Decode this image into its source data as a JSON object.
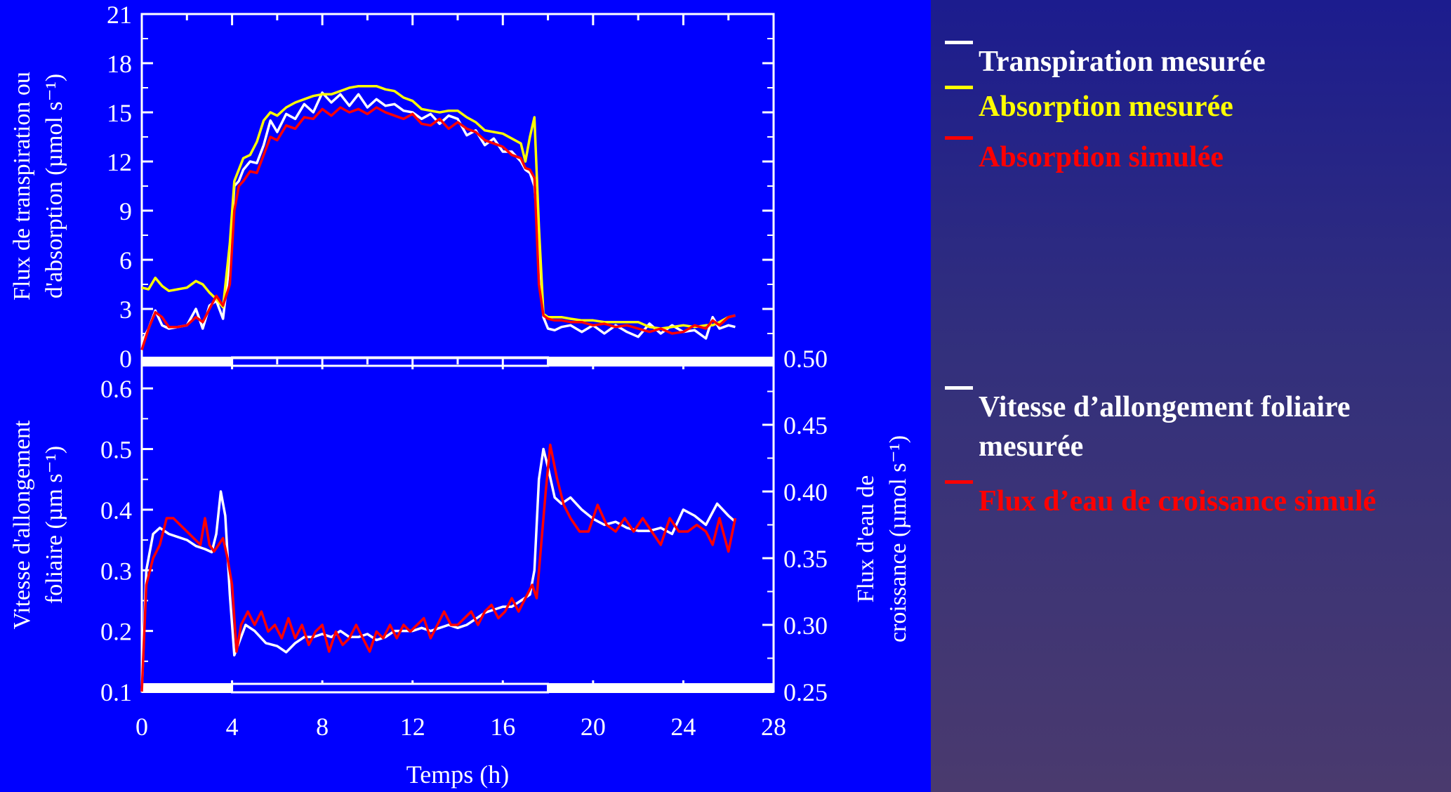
{
  "chart_data": [
    {
      "type": "line",
      "ylabel": [
        "Flux de transpiration ou",
        "d'absorption (µmol s⁻¹)"
      ],
      "xlim": [
        0,
        28
      ],
      "ylim": [
        0,
        21
      ],
      "yticks": [
        "0",
        "3",
        "6",
        "9",
        "12",
        "15",
        "18",
        "21"
      ],
      "series": [
        {
          "name": "Transpiration mesurée",
          "color": "#ffffff",
          "x": [
            0,
            0.3,
            0.6,
            0.9,
            1.2,
            1.6,
            2.0,
            2.4,
            2.7,
            3.0,
            3.3,
            3.6,
            3.9,
            4.1,
            4.3,
            4.5,
            4.8,
            5.1,
            5.4,
            5.7,
            6.0,
            6.4,
            6.8,
            7.2,
            7.6,
            8.0,
            8.4,
            8.8,
            9.2,
            9.6,
            10.0,
            10.4,
            10.8,
            11.2,
            11.6,
            12.0,
            12.4,
            12.8,
            13.2,
            13.6,
            14.0,
            14.4,
            14.8,
            15.2,
            15.6,
            16.0,
            16.4,
            16.8,
            17.0,
            17.2,
            17.4,
            17.6,
            17.8,
            18.0,
            18.3,
            18.6,
            19.0,
            19.5,
            20.0,
            20.5,
            21.0,
            21.5,
            22.0,
            22.5,
            23.0,
            23.5,
            24.0,
            24.5,
            25.0,
            25.3,
            25.6,
            26.0,
            26.3
          ],
          "values": [
            1.0,
            1.8,
            2.9,
            2.0,
            1.8,
            1.9,
            2.0,
            3.0,
            1.8,
            3.2,
            3.5,
            2.4,
            6.0,
            10.5,
            10.8,
            11.5,
            12.0,
            11.9,
            13.0,
            14.5,
            13.8,
            14.9,
            14.6,
            15.5,
            15.0,
            16.2,
            15.6,
            16.1,
            15.4,
            16.1,
            15.3,
            15.8,
            15.4,
            15.5,
            15.1,
            15.0,
            14.6,
            14.9,
            14.3,
            14.8,
            14.6,
            13.6,
            13.9,
            13.0,
            13.4,
            12.6,
            12.6,
            12.0,
            11.5,
            11.3,
            10.5,
            7.0,
            2.5,
            1.8,
            1.7,
            1.9,
            2.0,
            1.6,
            2.0,
            1.5,
            2.0,
            1.6,
            1.3,
            2.1,
            1.5,
            2.0,
            1.6,
            1.7,
            1.2,
            2.5,
            1.8,
            2.0,
            1.9
          ]
        },
        {
          "name": "Absorption mesurée",
          "color": "#ffff00",
          "x": [
            0,
            0.3,
            0.6,
            0.9,
            1.2,
            1.6,
            2.0,
            2.4,
            2.7,
            3.0,
            3.3,
            3.6,
            3.9,
            4.1,
            4.3,
            4.5,
            4.8,
            5.1,
            5.4,
            5.7,
            6.0,
            6.4,
            6.8,
            7.2,
            7.6,
            8.0,
            8.4,
            8.8,
            9.2,
            9.6,
            10.0,
            10.4,
            10.8,
            11.2,
            11.6,
            12.0,
            12.4,
            12.8,
            13.2,
            13.6,
            14.0,
            14.4,
            14.8,
            15.2,
            15.6,
            16.0,
            16.4,
            16.8,
            17.0,
            17.2,
            17.4,
            17.6,
            17.8,
            18.0,
            18.3,
            18.6,
            19.0,
            19.5,
            20.0,
            20.5,
            21.0,
            21.5,
            22.0,
            22.5,
            23.0,
            23.5,
            24.0,
            24.5,
            25.0,
            25.3,
            25.6,
            26.0,
            26.3
          ],
          "values": [
            4.3,
            4.2,
            4.9,
            4.4,
            4.1,
            4.2,
            4.3,
            4.7,
            4.5,
            4.0,
            3.6,
            3.1,
            7.0,
            10.8,
            11.5,
            12.2,
            12.4,
            13.2,
            14.5,
            15.0,
            14.8,
            15.3,
            15.6,
            15.8,
            16.0,
            16.1,
            16.1,
            16.3,
            16.5,
            16.6,
            16.6,
            16.6,
            16.4,
            16.3,
            15.9,
            15.7,
            15.2,
            15.1,
            15.0,
            15.1,
            15.1,
            14.7,
            14.4,
            13.9,
            13.8,
            13.7,
            13.4,
            13.1,
            12.0,
            13.5,
            14.7,
            8.0,
            2.7,
            2.5,
            2.5,
            2.5,
            2.4,
            2.3,
            2.3,
            2.2,
            2.2,
            2.2,
            2.2,
            1.9,
            1.8,
            1.9,
            2.0,
            1.9,
            2.0,
            2.0,
            2.2,
            2.5,
            2.6
          ]
        },
        {
          "name": "Absorption simulée",
          "color": "#ff0000",
          "x": [
            0,
            0.3,
            0.6,
            0.9,
            1.2,
            1.6,
            2.0,
            2.4,
            2.7,
            3.0,
            3.3,
            3.6,
            3.9,
            4.1,
            4.3,
            4.5,
            4.8,
            5.1,
            5.4,
            5.7,
            6.0,
            6.4,
            6.8,
            7.2,
            7.6,
            8.0,
            8.4,
            8.8,
            9.2,
            9.6,
            10.0,
            10.4,
            10.8,
            11.2,
            11.6,
            12.0,
            12.4,
            12.8,
            13.2,
            13.6,
            14.0,
            14.4,
            14.8,
            15.2,
            15.6,
            16.0,
            16.4,
            16.8,
            17.0,
            17.2,
            17.4,
            17.6,
            17.8,
            18.0,
            18.3,
            18.6,
            19.0,
            19.5,
            20.0,
            20.5,
            21.0,
            21.5,
            22.0,
            22.5,
            23.0,
            23.5,
            24.0,
            24.5,
            25.0,
            25.3,
            25.6,
            26.0,
            26.3
          ],
          "values": [
            0.5,
            1.8,
            2.8,
            2.5,
            1.9,
            1.9,
            2.0,
            2.5,
            2.2,
            3.0,
            3.8,
            3.2,
            4.5,
            9.0,
            10.5,
            10.8,
            11.4,
            11.3,
            12.4,
            13.5,
            13.3,
            14.2,
            14.0,
            14.7,
            14.6,
            15.2,
            14.8,
            15.3,
            15.0,
            15.2,
            14.9,
            15.3,
            15.0,
            14.8,
            14.6,
            14.9,
            14.3,
            14.2,
            14.6,
            14.0,
            14.4,
            14.0,
            13.8,
            13.3,
            13.1,
            12.9,
            12.4,
            12.2,
            11.6,
            11.5,
            11.0,
            4.5,
            2.6,
            2.4,
            2.3,
            2.3,
            2.2,
            2.2,
            2.0,
            2.1,
            1.9,
            2.0,
            1.8,
            1.6,
            1.8,
            1.5,
            1.6,
            2.0,
            1.8,
            2.3,
            2.0,
            2.5,
            2.6
          ]
        }
      ]
    },
    {
      "type": "line",
      "xlabel": "Temps (h)",
      "ylabel": [
        "Vitesse d'allongement",
        "foliaire (µm s⁻¹)"
      ],
      "y2label": [
        "Flux d'eau de",
        "croissance (µmol s⁻¹)"
      ],
      "xlim": [
        0,
        28
      ],
      "ylim": [
        0.1,
        0.65
      ],
      "y2lim": [
        0.25,
        0.5
      ],
      "xticks": [
        "0",
        "4",
        "8",
        "12",
        "16",
        "20",
        "24",
        "28"
      ],
      "yticks": [
        "0.1",
        "0.2",
        "0.3",
        "0.4",
        "0.5",
        "0.6"
      ],
      "y2ticks": [
        "0.25",
        "0.30",
        "0.35",
        "0.40",
        "0.45",
        "0.50"
      ],
      "series": [
        {
          "name": "Vitesse d’allongement foliaire mesurée",
          "color": "#ffffff",
          "axis": "left",
          "x": [
            0,
            0.2,
            0.5,
            0.8,
            1.2,
            1.6,
            2.0,
            2.4,
            2.8,
            3.1,
            3.3,
            3.5,
            3.7,
            3.9,
            4.1,
            4.3,
            4.6,
            5.0,
            5.5,
            6.0,
            6.4,
            6.8,
            7.2,
            7.6,
            8.0,
            8.4,
            8.8,
            9.2,
            9.6,
            10.0,
            10.4,
            10.8,
            11.2,
            11.6,
            12.0,
            12.4,
            12.8,
            13.2,
            13.6,
            14.0,
            14.4,
            14.8,
            15.2,
            15.6,
            16.0,
            16.4,
            16.8,
            17.2,
            17.4,
            17.6,
            17.8,
            18.0,
            18.3,
            18.6,
            19.0,
            19.5,
            20.0,
            20.5,
            21.0,
            21.5,
            22.0,
            22.5,
            23.0,
            23.5,
            24.0,
            24.5,
            25.0,
            25.5,
            26.0,
            26.3
          ],
          "values": [
            0.1,
            0.3,
            0.36,
            0.37,
            0.36,
            0.355,
            0.35,
            0.34,
            0.335,
            0.33,
            0.36,
            0.43,
            0.39,
            0.26,
            0.16,
            0.18,
            0.21,
            0.2,
            0.18,
            0.175,
            0.165,
            0.18,
            0.19,
            0.19,
            0.195,
            0.19,
            0.2,
            0.19,
            0.19,
            0.195,
            0.185,
            0.19,
            0.2,
            0.2,
            0.2,
            0.205,
            0.2,
            0.205,
            0.21,
            0.205,
            0.21,
            0.22,
            0.23,
            0.235,
            0.24,
            0.24,
            0.25,
            0.26,
            0.3,
            0.45,
            0.5,
            0.47,
            0.42,
            0.41,
            0.42,
            0.4,
            0.385,
            0.375,
            0.38,
            0.37,
            0.365,
            0.365,
            0.37,
            0.36,
            0.4,
            0.39,
            0.375,
            0.41,
            0.39,
            0.38
          ]
        },
        {
          "name": "Flux d’eau  de croissance simulé",
          "color": "#ff0000",
          "axis": "right",
          "x": [
            0,
            0.2,
            0.5,
            0.8,
            1.1,
            1.4,
            1.7,
            2.0,
            2.3,
            2.6,
            2.8,
            3.0,
            3.2,
            3.4,
            3.6,
            3.8,
            4.0,
            4.2,
            4.4,
            4.7,
            5.0,
            5.3,
            5.6,
            5.9,
            6.2,
            6.5,
            6.8,
            7.1,
            7.4,
            7.7,
            8.0,
            8.3,
            8.6,
            8.9,
            9.2,
            9.5,
            9.8,
            10.1,
            10.4,
            10.7,
            11.0,
            11.3,
            11.6,
            11.9,
            12.2,
            12.5,
            12.8,
            13.1,
            13.4,
            13.7,
            14.0,
            14.3,
            14.6,
            14.9,
            15.2,
            15.5,
            15.8,
            16.1,
            16.4,
            16.7,
            17.0,
            17.3,
            17.5,
            17.7,
            17.9,
            18.1,
            18.4,
            18.7,
            19.0,
            19.4,
            19.8,
            20.2,
            20.6,
            21.0,
            21.4,
            21.8,
            22.2,
            22.6,
            23.0,
            23.4,
            23.8,
            24.2,
            24.6,
            25.0,
            25.3,
            25.6,
            26.0,
            26.3
          ],
          "values": [
            0.25,
            0.33,
            0.35,
            0.36,
            0.38,
            0.38,
            0.375,
            0.37,
            0.365,
            0.36,
            0.38,
            0.36,
            0.355,
            0.36,
            0.365,
            0.35,
            0.33,
            0.28,
            0.3,
            0.31,
            0.3,
            0.31,
            0.295,
            0.3,
            0.29,
            0.305,
            0.29,
            0.3,
            0.285,
            0.295,
            0.3,
            0.28,
            0.295,
            0.285,
            0.29,
            0.3,
            0.29,
            0.28,
            0.295,
            0.29,
            0.3,
            0.29,
            0.3,
            0.295,
            0.3,
            0.305,
            0.29,
            0.3,
            0.31,
            0.3,
            0.3,
            0.305,
            0.31,
            0.3,
            0.31,
            0.315,
            0.305,
            0.31,
            0.32,
            0.31,
            0.32,
            0.33,
            0.32,
            0.36,
            0.4,
            0.435,
            0.41,
            0.39,
            0.38,
            0.37,
            0.37,
            0.39,
            0.375,
            0.37,
            0.38,
            0.37,
            0.38,
            0.37,
            0.36,
            0.38,
            0.37,
            0.37,
            0.375,
            0.37,
            0.36,
            0.38,
            0.355,
            0.38
          ]
        }
      ]
    }
  ],
  "legend_top": [
    {
      "label": "Transpiration mesurée",
      "color": "#ffffff"
    },
    {
      "label": "Absorption mesurée",
      "color": "#ffff00"
    },
    {
      "label": "Absorption simulée",
      "color": "#ff0000"
    }
  ],
  "legend_bottom": [
    {
      "label": "Vitesse d’allongement foliaire mesurée",
      "color": "#ffffff"
    },
    {
      "label": "Flux d’eau  de croissance simulé",
      "color": "#ff0000"
    }
  ]
}
